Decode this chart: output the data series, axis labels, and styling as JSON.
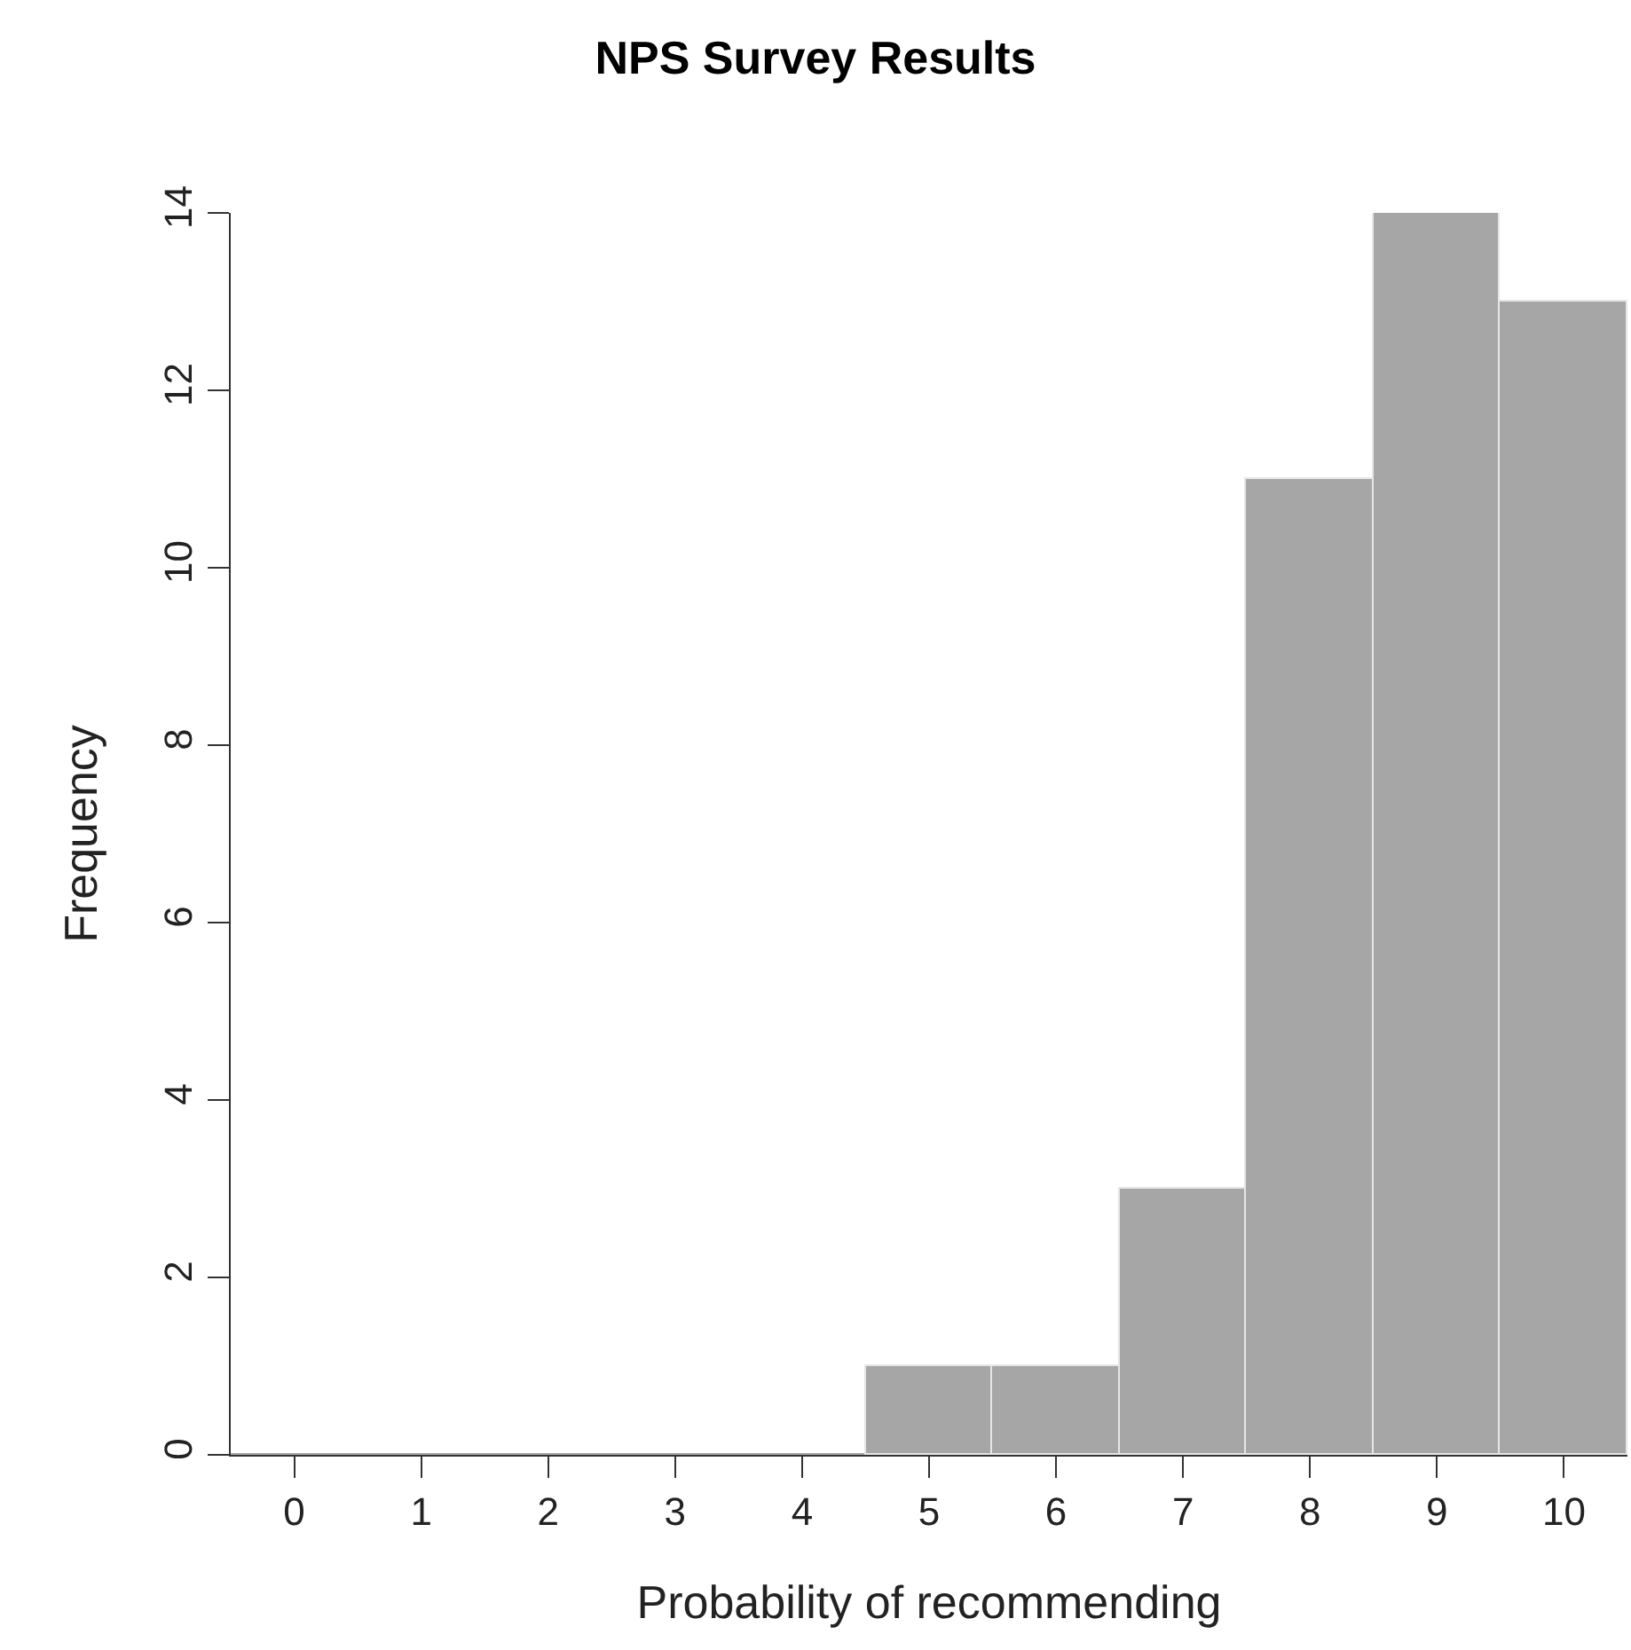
{
  "chart_data": {
    "type": "histogram",
    "title": "NPS Survey Results",
    "xlabel": "Probability of recommending",
    "ylabel": "Frequency",
    "bins": [
      -0.5,
      0.5,
      1.5,
      2.5,
      3.5,
      4.5,
      5.5,
      6.5,
      7.5,
      8.5,
      9.5,
      10.5
    ],
    "values": [
      0,
      0,
      0,
      0,
      0,
      1,
      1,
      3,
      11,
      14,
      13
    ],
    "color": "#a6a6a6",
    "xlim": [
      -0.5,
      10.5
    ],
    "xticks": [
      0,
      1,
      2,
      3,
      4,
      5,
      6,
      7,
      8,
      9,
      10
    ],
    "ylim": [
      0,
      14
    ],
    "yticks": [
      0,
      2,
      4,
      6,
      8,
      10,
      12,
      14
    ],
    "grid": false
  }
}
